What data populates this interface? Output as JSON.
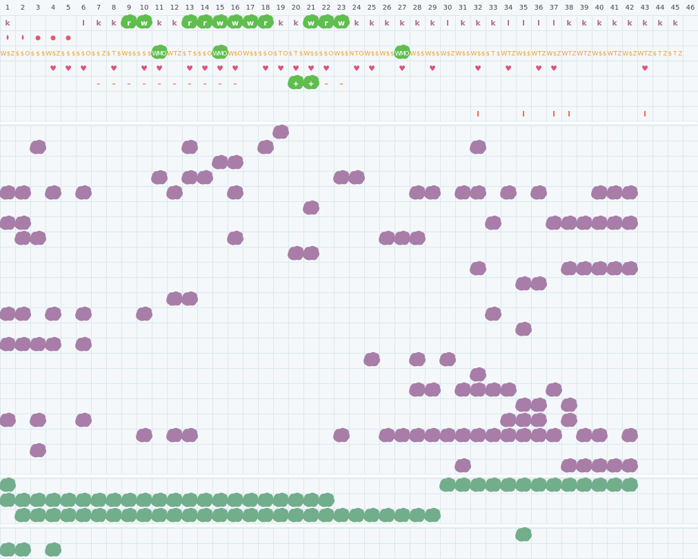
{
  "header": {
    "columns": [
      1,
      2,
      3,
      4,
      5,
      6,
      7,
      8,
      9,
      10,
      11,
      12,
      13,
      14,
      15,
      16,
      17,
      18,
      19,
      20,
      21,
      22,
      23,
      24,
      25,
      26,
      27,
      28,
      29,
      30,
      31,
      32,
      33,
      34,
      35,
      36,
      37,
      38,
      39,
      40,
      41,
      42,
      43,
      44,
      45,
      46
    ]
  },
  "sections": [
    {
      "rows": [
        {
          "color": "#b0708f",
          "cells": [
            "k",
            null,
            null,
            null,
            null,
            "l",
            "k",
            "k",
            "r",
            "w",
            "k",
            "k",
            "r",
            "r",
            "w",
            "w",
            "w",
            "r",
            "k",
            "k",
            "w",
            "r",
            "w",
            "k",
            "k",
            "k",
            "k",
            "k",
            "k",
            "l",
            "k",
            "k",
            "k",
            "l",
            "l",
            "l",
            "l",
            "k",
            "k",
            "k",
            "k",
            "k",
            "k",
            "k",
            "k",
            null
          ],
          "highlight": [
            9,
            10,
            13,
            14,
            15,
            16,
            17,
            18,
            21,
            22,
            23
          ]
        },
        {
          "color": "#e05a6a"
        },
        {
          "color": "#f0a22a",
          "cells": [
            "W$Z",
            "$$O",
            "$$$",
            "W$Z",
            "$$$",
            "$$O",
            "$$Z",
            "$T$",
            "W$$",
            "$$$",
            "WMO",
            "WTZ",
            "$T$",
            "$$O",
            "WMO",
            "W$O",
            "W$$",
            "$$O",
            "$TO",
            "$T$",
            "W$$",
            "$$O",
            "W$$",
            "NTO",
            "W$$",
            "W$$",
            "WMO",
            "W$$",
            "W$$",
            "W$Z",
            "W$$",
            "W$$",
            "$T$",
            "WTZ",
            "W$$",
            "WTZ",
            "W$Z",
            "WTZ",
            "WTZ",
            "W$$",
            "WTZ",
            "W$Z",
            "WTZ",
            "$TZ",
            "$TZ",
            null
          ],
          "highlight": [
            11,
            15,
            27
          ]
        },
        {
          "color": "#e0527a",
          "cells": [
            null,
            null,
            null,
            "♥",
            "♥",
            "♥",
            null,
            "♥",
            null,
            "♥",
            "♥",
            null,
            "♥",
            "♥",
            "♥",
            "♥",
            null,
            "♥",
            "♥",
            "♥",
            "♥",
            "♥",
            null,
            "♥",
            "♥",
            null,
            "♥",
            null,
            "♥",
            null,
            null,
            "♥",
            null,
            "♥",
            null,
            "♥",
            "♥",
            null,
            null,
            null,
            null,
            null,
            "♥",
            null,
            null,
            null
          ]
        },
        {
          "color": "#f0804a",
          "cells": [
            null,
            null,
            null,
            null,
            null,
            null,
            "–",
            "–",
            "–",
            "–",
            "–",
            "–",
            "–",
            "–",
            "–",
            "–",
            null,
            null,
            null,
            "+",
            "+",
            "–",
            "–"
          ],
          "highlight": [
            20,
            21
          ]
        },
        {
          "color": "#f0804a"
        },
        {
          "color": "#f07050",
          "cells": [
            null,
            null,
            null,
            null,
            null,
            null,
            null,
            null,
            null,
            null,
            null,
            null,
            null,
            null,
            null,
            null,
            null,
            null,
            null,
            null,
            null,
            null,
            null,
            null,
            null,
            null,
            null,
            null,
            null,
            null,
            null,
            "I",
            null,
            null,
            "I",
            null,
            "I",
            "I",
            null,
            null,
            null,
            null,
            "I"
          ]
        }
      ]
    },
    {
      "color": "#a87da8",
      "rows": [
        {
          "filled": [
            19
          ]
        },
        {
          "filled": [
            3,
            13,
            18,
            32
          ]
        },
        {
          "filled": [
            15,
            16
          ]
        },
        {
          "filled": [
            11,
            13,
            14,
            23,
            24
          ]
        },
        {
          "filled": [
            1,
            2,
            4,
            6,
            12,
            16,
            28,
            29,
            31,
            32,
            34,
            36,
            40,
            41,
            42
          ]
        },
        {
          "filled": [
            21
          ]
        },
        {
          "filled": [
            1,
            2,
            33,
            37,
            38,
            39,
            40,
            41,
            42
          ]
        },
        {
          "filled": [
            2,
            3,
            16,
            26,
            27,
            28
          ]
        },
        {
          "filled": [
            20,
            21
          ]
        },
        {
          "filled": [
            32,
            38,
            39,
            40,
            41,
            42
          ]
        },
        {
          "filled": [
            35,
            36
          ]
        },
        {
          "filled": [
            12,
            13
          ]
        },
        {
          "filled": [
            1,
            2,
            4,
            6,
            10,
            33
          ]
        },
        {
          "filled": [
            35
          ]
        },
        {
          "filled": [
            1,
            2,
            3,
            4,
            6
          ]
        },
        {
          "filled": [
            25,
            28,
            30
          ]
        },
        {
          "filled": [
            32
          ]
        },
        {
          "filled": [
            28,
            29,
            31,
            32,
            33,
            34,
            37
          ]
        },
        {
          "filled": [
            35,
            36,
            38
          ]
        },
        {
          "filled": [
            1,
            3,
            6,
            34,
            35,
            36,
            38
          ]
        },
        {
          "filled": [
            10,
            12,
            13,
            23,
            26,
            27,
            28,
            29,
            30,
            31,
            32,
            33,
            34,
            35,
            36,
            37,
            39,
            40,
            42
          ]
        },
        {
          "filled": [
            3
          ]
        },
        {
          "filled": [
            31,
            38,
            39,
            40,
            41,
            42
          ]
        }
      ]
    },
    {
      "color": "#72ad8c",
      "rows": [
        {
          "filled": [
            1,
            30,
            31,
            32,
            33,
            34,
            35,
            36,
            37,
            38,
            39,
            40,
            41,
            42
          ]
        },
        {
          "filled": [
            1,
            2,
            3,
            4,
            5,
            6,
            7,
            8,
            9,
            10,
            11,
            12,
            13,
            14,
            15,
            16,
            17,
            18,
            19,
            20,
            21,
            22
          ]
        },
        {
          "filled": [
            2,
            3,
            4,
            5,
            6,
            7,
            8,
            9,
            10,
            11,
            12,
            13,
            14,
            15,
            16,
            17,
            18,
            19,
            20,
            21,
            22,
            23,
            24,
            25,
            26,
            27,
            28,
            29
          ]
        }
      ]
    },
    {
      "color": "#72ad8c",
      "rows": [
        {
          "filled": [
            35
          ]
        },
        {
          "filled": [
            1,
            2,
            4
          ]
        }
      ]
    }
  ]
}
